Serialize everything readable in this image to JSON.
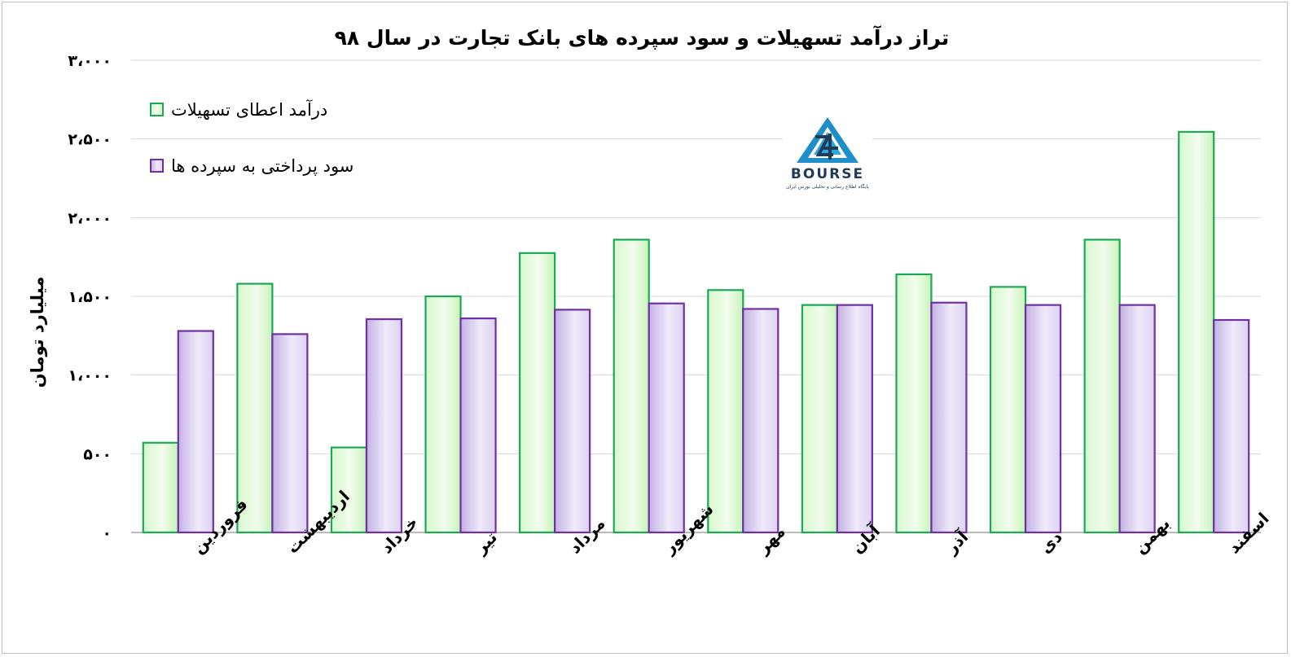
{
  "chart_data": {
    "type": "bar",
    "title": "تراز درآمد تسهیلات و سود سپرده های بانک تجارت در سال ۹۸",
    "ylabel": "میلیارد تومان",
    "xlabel": "",
    "ylim": [
      0,
      3000
    ],
    "yticks": [
      0,
      500,
      1000,
      1500,
      2000,
      2500,
      3000
    ],
    "ytick_labels": [
      "۰",
      "۵۰۰",
      "۱،۰۰۰",
      "۱،۵۰۰",
      "۲،۰۰۰",
      "۲،۵۰۰",
      "۳،۰۰۰"
    ],
    "grid": true,
    "legend_position": "top-left",
    "categories": [
      "فروردین",
      "اردیبهشت",
      "خرداد",
      "تیر",
      "مرداد",
      "شهریور",
      "مهر",
      "آبان",
      "آذر",
      "دی",
      "بهمن",
      "اسفند"
    ],
    "series": [
      {
        "name": "درآمد اعطای تسهیلات",
        "color": "#1aaa55",
        "values": [
          570,
          1580,
          540,
          1500,
          1775,
          1860,
          1540,
          1445,
          1640,
          1560,
          1860,
          2545
        ]
      },
      {
        "name": "سود پرداختی به سپرده ها",
        "color": "#7030a0",
        "values": [
          1280,
          1260,
          1355,
          1360,
          1415,
          1455,
          1420,
          1445,
          1460,
          1445,
          1445,
          1350
        ]
      }
    ]
  },
  "logo": {
    "icon": "bourse24-logo-icon",
    "brand": "BOURSE",
    "tagline": "پایگاه اطلاع رسانی و تحلیلی بورس ایران"
  }
}
